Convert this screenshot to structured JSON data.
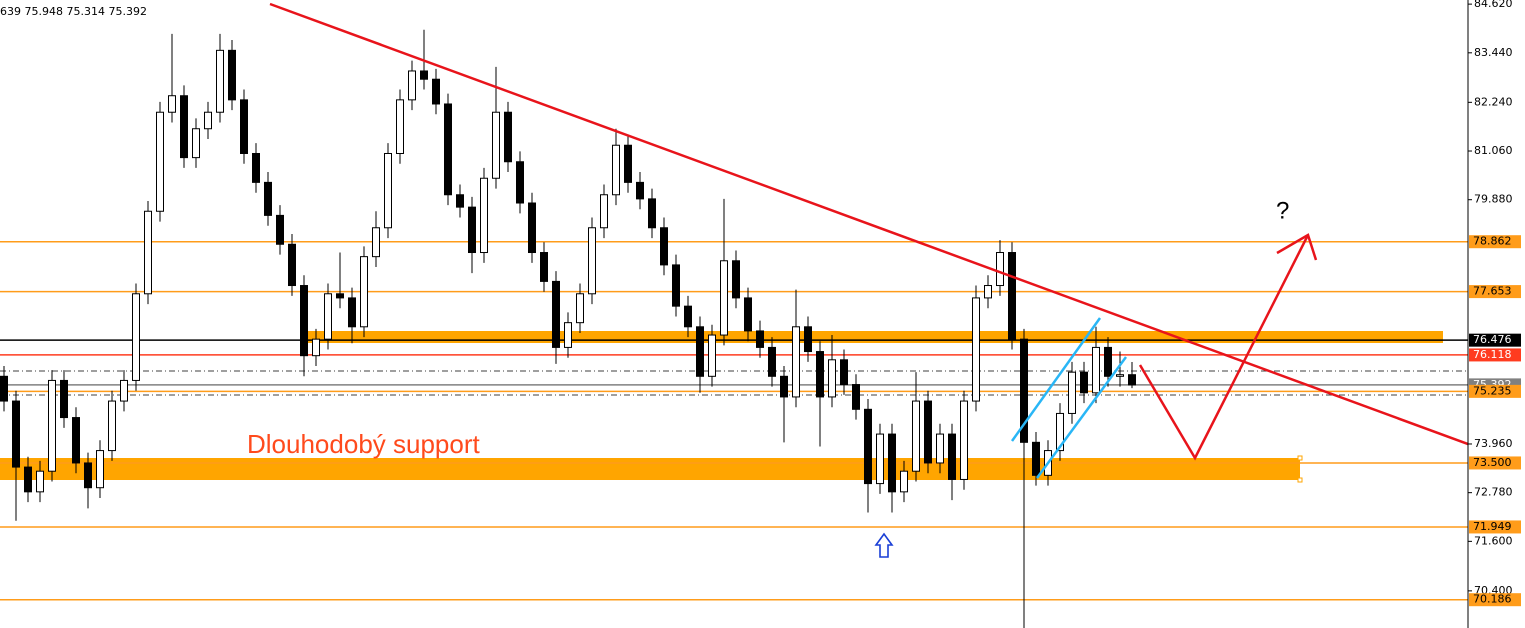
{
  "chart_data": {
    "type": "candlestick",
    "header": "639 75.948 75.314 75.392",
    "annotations": [
      "Dlouhodobý support",
      "?"
    ],
    "ylim": [
      69.5,
      84.72
    ],
    "yticks": [
      {
        "value": 84.62,
        "label": "84.620"
      },
      {
        "value": 83.44,
        "label": "83.440"
      },
      {
        "value": 82.24,
        "label": "82.240"
      },
      {
        "value": 81.06,
        "label": "81.060"
      },
      {
        "value": 79.88,
        "label": "79.880"
      },
      {
        "value": 73.96,
        "label": "73.960"
      },
      {
        "value": 72.78,
        "label": "72.780"
      },
      {
        "value": 71.6,
        "label": "71.600"
      },
      {
        "value": 70.4,
        "label": "70.400"
      }
    ],
    "up_color": "#ffffff",
    "down_color": "#000000",
    "levels": [
      {
        "value": 78.862,
        "color": "#ff9c1a"
      },
      {
        "value": 77.653,
        "color": "#ff9c1a"
      },
      {
        "value": 76.476,
        "color": "#000000"
      },
      {
        "value": 76.118,
        "color": "#ff3b1f"
      },
      {
        "value": 75.392,
        "color": "#808080"
      },
      {
        "value": 75.235,
        "color": "#ff9c1a"
      },
      {
        "value": 73.5,
        "label": "73.500",
        "color": "#ff9c1a"
      },
      {
        "value": 71.949,
        "color": "#ff9c1a"
      },
      {
        "value": 70.186,
        "color": "#ff9c1a"
      }
    ],
    "ohlc": [
      [
        75.6,
        75.85,
        74.75,
        75.0
      ],
      [
        75.0,
        75.25,
        72.1,
        73.4
      ],
      [
        73.4,
        73.65,
        72.55,
        72.8
      ],
      [
        72.8,
        73.55,
        72.55,
        73.3
      ],
      [
        73.3,
        75.75,
        73.05,
        75.5
      ],
      [
        75.5,
        75.75,
        74.35,
        74.6
      ],
      [
        74.6,
        74.85,
        73.25,
        73.5
      ],
      [
        73.5,
        73.75,
        72.4,
        72.9
      ],
      [
        72.9,
        74.05,
        72.65,
        73.8
      ],
      [
        73.8,
        75.25,
        73.55,
        75.0
      ],
      [
        75.0,
        75.75,
        74.75,
        75.5
      ],
      [
        75.5,
        77.85,
        75.25,
        77.6
      ],
      [
        77.6,
        79.85,
        77.35,
        79.6
      ],
      [
        79.6,
        82.25,
        79.35,
        82.0
      ],
      [
        82.0,
        83.9,
        81.75,
        82.4
      ],
      [
        82.4,
        82.65,
        80.65,
        80.9
      ],
      [
        80.9,
        81.85,
        80.65,
        81.6
      ],
      [
        81.6,
        82.25,
        81.35,
        82.0
      ],
      [
        82.0,
        83.9,
        81.75,
        83.5
      ],
      [
        83.5,
        83.75,
        82.05,
        82.3
      ],
      [
        82.3,
        82.55,
        80.75,
        81.0
      ],
      [
        81.0,
        81.25,
        80.05,
        80.3
      ],
      [
        80.3,
        80.55,
        79.25,
        79.5
      ],
      [
        79.5,
        79.75,
        78.55,
        78.8
      ],
      [
        78.8,
        79.05,
        77.55,
        77.8
      ],
      [
        77.8,
        78.05,
        75.6,
        76.1
      ],
      [
        76.1,
        76.75,
        75.85,
        76.5
      ],
      [
        76.5,
        77.85,
        76.25,
        77.6
      ],
      [
        77.6,
        78.6,
        77.25,
        77.5
      ],
      [
        77.5,
        77.75,
        76.4,
        76.8
      ],
      [
        76.8,
        78.75,
        76.55,
        78.5
      ],
      [
        78.5,
        79.6,
        78.25,
        79.2
      ],
      [
        79.2,
        81.25,
        78.95,
        81.0
      ],
      [
        81.0,
        82.55,
        80.75,
        82.3
      ],
      [
        82.3,
        83.25,
        82.05,
        83.0
      ],
      [
        83.0,
        84.0,
        82.55,
        82.8
      ],
      [
        82.8,
        83.05,
        81.95,
        82.2
      ],
      [
        82.2,
        82.45,
        79.75,
        80.0
      ],
      [
        80.0,
        80.25,
        79.45,
        79.7
      ],
      [
        79.7,
        79.95,
        78.1,
        78.6
      ],
      [
        78.6,
        80.65,
        78.35,
        80.4
      ],
      [
        80.4,
        83.1,
        80.15,
        82.0
      ],
      [
        82.0,
        82.25,
        80.55,
        80.8
      ],
      [
        80.8,
        81.05,
        79.55,
        79.8
      ],
      [
        79.8,
        80.05,
        78.35,
        78.6
      ],
      [
        78.6,
        78.85,
        77.65,
        77.9
      ],
      [
        77.9,
        78.15,
        75.9,
        76.3
      ],
      [
        76.3,
        77.15,
        76.05,
        76.9
      ],
      [
        76.9,
        77.85,
        76.65,
        77.6
      ],
      [
        77.6,
        79.45,
        77.35,
        79.2
      ],
      [
        79.2,
        80.25,
        78.95,
        80.0
      ],
      [
        80.0,
        81.6,
        79.75,
        81.2
      ],
      [
        81.2,
        81.45,
        80.05,
        80.3
      ],
      [
        80.3,
        80.55,
        79.65,
        79.9
      ],
      [
        79.9,
        80.15,
        78.95,
        79.2
      ],
      [
        79.2,
        79.45,
        78.05,
        78.3
      ],
      [
        78.3,
        78.55,
        77.05,
        77.3
      ],
      [
        77.3,
        77.55,
        76.55,
        76.8
      ],
      [
        76.8,
        77.05,
        75.2,
        75.6
      ],
      [
        75.6,
        76.85,
        75.35,
        76.6
      ],
      [
        76.6,
        79.9,
        76.35,
        78.4
      ],
      [
        78.4,
        78.65,
        77.25,
        77.5
      ],
      [
        77.5,
        77.75,
        76.45,
        76.7
      ],
      [
        76.7,
        76.95,
        76.05,
        76.3
      ],
      [
        76.3,
        76.55,
        75.35,
        75.6
      ],
      [
        75.6,
        75.85,
        74.0,
        75.1
      ],
      [
        75.1,
        77.7,
        74.85,
        76.8
      ],
      [
        76.8,
        77.05,
        75.95,
        76.2
      ],
      [
        76.2,
        76.45,
        73.9,
        75.1
      ],
      [
        75.1,
        76.6,
        74.85,
        76.0
      ],
      [
        76.0,
        76.25,
        75.15,
        75.4
      ],
      [
        75.4,
        75.65,
        74.55,
        74.8
      ],
      [
        74.8,
        75.05,
        72.3,
        73.0
      ],
      [
        73.0,
        74.45,
        72.75,
        74.2
      ],
      [
        74.2,
        74.45,
        72.3,
        72.8
      ],
      [
        72.8,
        73.55,
        72.55,
        73.3
      ],
      [
        73.3,
        75.7,
        73.05,
        75.0
      ],
      [
        75.0,
        75.25,
        73.25,
        73.5
      ],
      [
        73.5,
        74.45,
        73.25,
        74.2
      ],
      [
        74.2,
        74.45,
        72.6,
        73.1
      ],
      [
        73.1,
        75.25,
        72.85,
        75.0
      ],
      [
        75.0,
        77.8,
        74.75,
        77.5
      ],
      [
        77.5,
        78.05,
        77.25,
        77.8
      ],
      [
        77.8,
        78.9,
        77.55,
        78.6
      ],
      [
        78.6,
        78.85,
        76.25,
        76.5
      ],
      [
        76.5,
        76.75,
        69.5,
        74.0
      ],
      [
        74.0,
        74.25,
        72.95,
        73.2
      ],
      [
        73.2,
        74.05,
        72.95,
        73.8
      ],
      [
        73.8,
        74.95,
        73.55,
        74.7
      ],
      [
        74.7,
        75.95,
        74.45,
        75.7
      ],
      [
        75.7,
        75.95,
        74.95,
        75.2
      ],
      [
        75.2,
        76.8,
        74.95,
        76.3
      ],
      [
        76.3,
        76.55,
        75.35,
        75.6
      ],
      [
        75.6,
        76.2,
        75.35,
        75.639
      ],
      [
        75.639,
        75.948,
        75.314,
        75.392
      ]
    ]
  }
}
